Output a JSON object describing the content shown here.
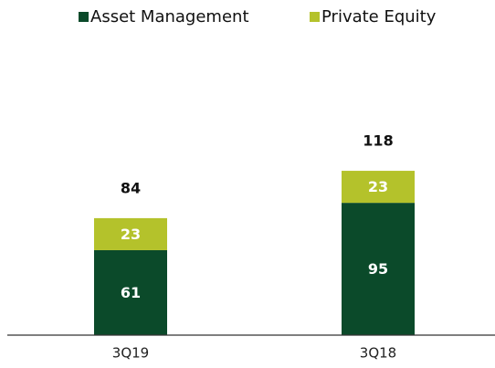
{
  "chart_data": {
    "type": "stacked_bar",
    "categories": [
      "3Q19",
      "3Q18"
    ],
    "series": [
      {
        "name": "Asset Management",
        "color": "#0b4a2a",
        "values": [
          61,
          95
        ]
      },
      {
        "name": "Private Equity",
        "color": "#b4c22b",
        "values": [
          23,
          23
        ]
      }
    ],
    "totals": [
      84,
      118
    ]
  }
}
